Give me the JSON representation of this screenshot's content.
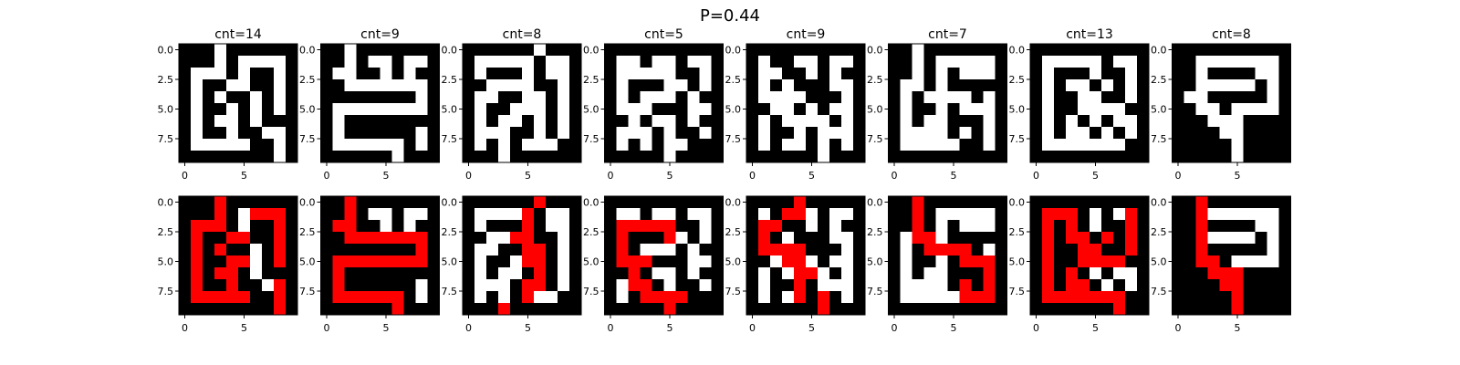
{
  "figure": {
    "title": "P=0.44"
  },
  "colors": {
    "wall": "#000000",
    "open": "#ffffff",
    "path": "#ff0000"
  },
  "chart_data": {
    "type": "heatmap",
    "title": "P=0.44",
    "grid_size": [
      10,
      10
    ],
    "x_ticks": [
      "0",
      "5"
    ],
    "y_ticks": [
      "0.0",
      "2.5",
      "5.0",
      "7.5"
    ],
    "x_tick_values": [
      0,
      5
    ],
    "y_tick_values": [
      0.0,
      2.5,
      5.0,
      7.5
    ],
    "legend": "0 = wall (black), 1 = open (white), 2 = path (red)",
    "panels": [
      {
        "title": "cnt=14",
        "cnt": 14,
        "maze": [
          "0001000000",
          "0001011110",
          "0111010010",
          "0100110010",
          "0101001010",
          "0100101010",
          "0101101000",
          "0100100110",
          "0111110010",
          "0000000010"
        ],
        "solved": [
          "0002000000",
          "0002012220",
          "0222010020",
          "0200220020",
          "0202001020",
          "0200221020",
          "0202201000",
          "0200200120",
          "0222220020",
          "0000000020"
        ]
      },
      {
        "title": "cnt=9",
        "cnt": 9,
        "maze": [
          "0010000000",
          "0010110110",
          "0110010100",
          "0011111110",
          "0000000010",
          "0111111110",
          "0100000000",
          "0100000010",
          "0111111010",
          "0000001000"
        ],
        "solved": [
          "0020000000",
          "0020110110",
          "0220010100",
          "0022222220",
          "0000000020",
          "0222222220",
          "0200000000",
          "0200000010",
          "0222222010",
          "0000002000"
        ]
      },
      {
        "title": "cnt=8",
        "cnt": 8,
        "maze": [
          "0000001000",
          "0111110110",
          "0100010110",
          "0011110010",
          "0110011010",
          "0100111010",
          "0101101010",
          "0111001010",
          "0101011100",
          "0001000000"
        ],
        "solved": [
          "0000002000",
          "0111120110",
          "0100020110",
          "0011220010",
          "0110022010",
          "0100122010",
          "0101102010",
          "0111022010",
          "0101021100",
          "0002000000"
        ]
      },
      {
        "title": "cnt=5",
        "cnt": 5,
        "maze": [
          "0000000000",
          "0110110110",
          "0111110010",
          "0100011010",
          "0101110100",
          "0111000110",
          "0010110100",
          "0111010010",
          "0101011000",
          "0000010000"
        ],
        "solved": [
          "0000000000",
          "0110110110",
          "0222220010",
          "0200021010",
          "0201110100",
          "0222000110",
          "0020110100",
          "0122010010",
          "0102222000",
          "0000020000"
        ]
      },
      {
        "title": "cnt=9",
        "cnt": 9,
        "maze": [
          "0000000000",
          "0100110110",
          "0110010100",
          "0101000110",
          "0111100010",
          "0011010110",
          "0101111010",
          "0100101110",
          "0101101010",
          "0000001000"
        ],
        "solved": [
          "0000200000",
          "0102210110",
          "0220010100",
          "0201000110",
          "0222200010",
          "0012210110",
          "0101221010",
          "0100201110",
          "0101202010",
          "0000002000"
        ]
      },
      {
        "title": "cnt=7",
        "cnt": 7,
        "maze": [
          "0010000000",
          "0010111110",
          "0010101110",
          "0110100000",
          "0101111010",
          "0100101110",
          "0101100010",
          "0111101010",
          "0111110010",
          "0000000000"
        ],
        "solved": [
          "0020000000",
          "0020111110",
          "0020101110",
          "0122100000",
          "0102222010",
          "0100102220",
          "0101100020",
          "0111102020",
          "0111112220",
          "0000000000"
        ]
      },
      {
        "title": "cnt=13",
        "cnt": 13,
        "maze": [
          "0000000000",
          "0111110110",
          "0100010010",
          "0101101010",
          "0100110010",
          "0100111100",
          "0101010110",
          "0101101010",
          "0111111100",
          "0000000000"
        ],
        "solved": [
          "0000000000",
          "0222010120",
          "0202010020",
          "0202202020",
          "0200220020",
          "0200222200",
          "0202010110",
          "0202201010",
          "0222222200",
          "0000000200"
        ]
      },
      {
        "title": "cnt=8",
        "cnt": 8,
        "maze": [
          "0000000000",
          "0011111110",
          "0010000110",
          "0011111010",
          "0110000010",
          "0011011110",
          "0001110000",
          "0000110000",
          "0000010000",
          "0000010000"
        ],
        "solved": [
          "0020000000",
          "0021111110",
          "0020000110",
          "0021111010",
          "0020000010",
          "0022011110",
          "0002220000",
          "0000220000",
          "0000020000",
          "0000020000"
        ]
      }
    ]
  }
}
